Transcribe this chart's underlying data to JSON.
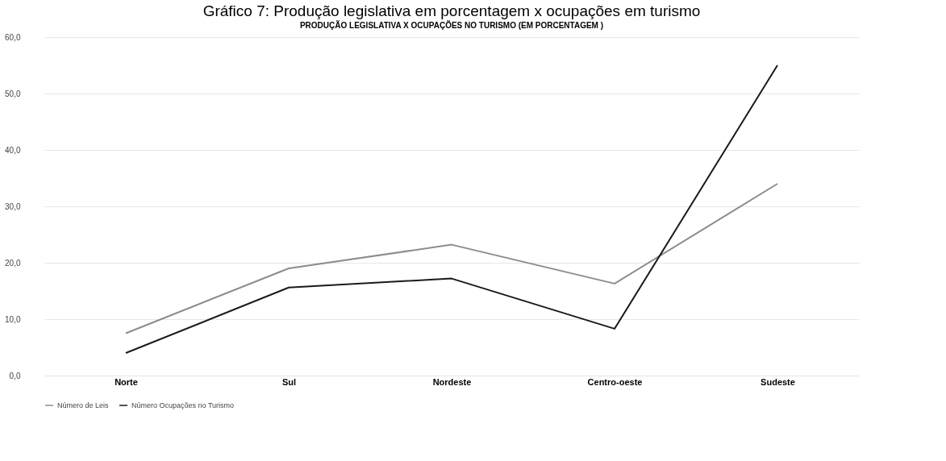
{
  "chart_data": {
    "type": "line",
    "title": "Gráfico 7: Produção legislativa em porcentagem x ocupações em turismo",
    "subtitle": "PRODUÇÃO LEGISLATIVA X  OCUPAÇÕES NO TURISMO (EM PORCENTAGEM  )",
    "categories": [
      "Norte",
      "Sul",
      "Nordeste",
      "Centro-oeste",
      "Sudeste"
    ],
    "series": [
      {
        "name": "Número de Leis",
        "color": "#8c8c8c",
        "values": [
          7.5,
          19.0,
          23.2,
          16.3,
          34.0
        ]
      },
      {
        "name": "Número Ocupações no Turismo",
        "color": "#1a1a1a",
        "values": [
          4.0,
          15.6,
          17.2,
          8.3,
          55.0
        ]
      }
    ],
    "ylim": [
      0,
      60
    ],
    "yticks": [
      {
        "value": 0,
        "label": "0,0"
      },
      {
        "value": 10,
        "label": "10,0"
      },
      {
        "value": 20,
        "label": "20,0"
      },
      {
        "value": 30,
        "label": "30,0"
      },
      {
        "value": 40,
        "label": "40,0"
      },
      {
        "value": 50,
        "label": "50,0"
      },
      {
        "value": 60,
        "label": "60,0"
      }
    ],
    "grid": "y",
    "legend": "bottom",
    "marker": "none",
    "line_style": "solid"
  }
}
